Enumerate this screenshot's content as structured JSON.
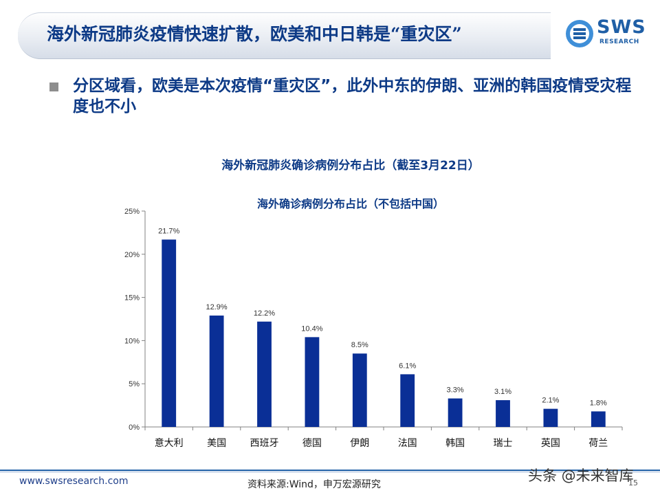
{
  "header": {
    "title": "海外新冠肺炎疫情快速扩散，欧美和中日韩是“重灾区”",
    "logo_text": "SWS",
    "logo_subtext": "RESEARCH"
  },
  "bullet": {
    "text": "分区域看，欧美是本次疫情“重灾区”，此外中东的伊朗、亚洲的韩国疫情受灾程度也不小"
  },
  "chart_heading": "海外新冠肺炎确诊病例分布占比（截至3月22日）",
  "chart_data": {
    "type": "bar",
    "title": "海外确诊病例分布占比（不包括中国）",
    "categories": [
      "意大利",
      "美国",
      "西班牙",
      "德国",
      "伊朗",
      "法国",
      "韩国",
      "瑞士",
      "英国",
      "荷兰"
    ],
    "values": [
      21.7,
      12.9,
      12.2,
      10.4,
      8.5,
      6.1,
      3.3,
      3.1,
      2.1,
      1.8
    ],
    "value_labels": [
      "21.7%",
      "12.9%",
      "12.2%",
      "10.4%",
      "8.5%",
      "6.1%",
      "3.3%",
      "3.1%",
      "2.1%",
      "1.8%"
    ],
    "unit": "%",
    "ylim": [
      0,
      25
    ],
    "yticks": [
      0,
      5,
      10,
      15,
      20,
      25
    ],
    "ytick_labels": [
      "0%",
      "5%",
      "10%",
      "15%",
      "20%",
      "25%"
    ],
    "bar_color": "#0a2f96",
    "grid": false,
    "legend": "none"
  },
  "footer": {
    "url": "www.swsresearch.com",
    "source": "资料来源:Wind，申万宏源研究",
    "watermark": "头条 @未来智库",
    "page_number": "15"
  },
  "colors": {
    "title_blue": "#0d3a86",
    "accent_blue": "#1f5fa6"
  }
}
